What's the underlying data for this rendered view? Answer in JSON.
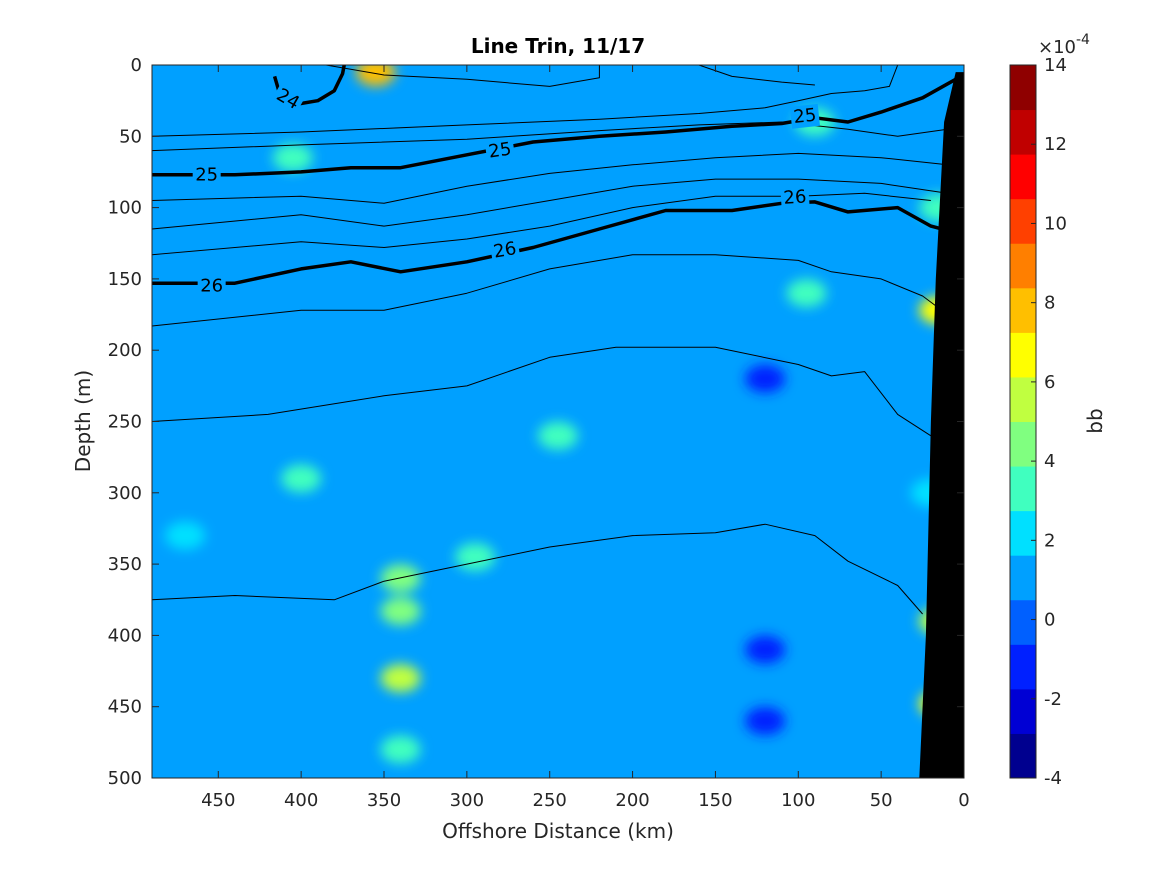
{
  "chart_data": {
    "type": "contour",
    "title": "Line Trin, 11/17",
    "xlabel": "Offshore Distance (km)",
    "ylabel": "Depth (m)",
    "xlim": [
      490,
      0
    ],
    "ylim": [
      0,
      500
    ],
    "x_reversed": true,
    "y_reversed": true,
    "xticks": [
      "450",
      "400",
      "350",
      "300",
      "250",
      "200",
      "150",
      "100",
      "50",
      "0"
    ],
    "xtick_values": [
      450,
      400,
      350,
      300,
      250,
      200,
      150,
      100,
      50,
      0
    ],
    "yticks": [
      "0",
      "50",
      "100",
      "150",
      "200",
      "250",
      "300",
      "350",
      "400",
      "450",
      "500"
    ],
    "ytick_values": [
      0,
      50,
      100,
      150,
      200,
      250,
      300,
      350,
      400,
      450,
      500
    ],
    "colorbar": {
      "label": "bb",
      "exponent_label": "×10",
      "exponent": "-4",
      "range": [
        -4,
        14
      ],
      "tick_values": [
        -4,
        -2,
        0,
        2,
        4,
        6,
        8,
        10,
        12,
        14
      ],
      "ticks": [
        "-4",
        "-2",
        "0",
        "2",
        "4",
        "6",
        "8",
        "10",
        "12",
        "14"
      ],
      "colors": [
        "#00008f",
        "#0000d4",
        "#0020ff",
        "#0060ff",
        "#00a0ff",
        "#00e0ff",
        "#40ffbf",
        "#80ff80",
        "#c0ff40",
        "#ffff00",
        "#ffbf00",
        "#ff7f00",
        "#ff4000",
        "#ff0000",
        "#c00000",
        "#8f0000"
      ]
    },
    "background_bb": 0.8,
    "bb_patches": [
      {
        "x": 355,
        "y": 5,
        "value": 8
      },
      {
        "x": 405,
        "y": 65,
        "value": 3
      },
      {
        "x": 90,
        "y": 40,
        "value": 3
      },
      {
        "x": 95,
        "y": 160,
        "value": 3
      },
      {
        "x": 15,
        "y": 100,
        "value": 3
      },
      {
        "x": 15,
        "y": 172,
        "value": 7
      },
      {
        "x": 20,
        "y": 300,
        "value": 2
      },
      {
        "x": 15,
        "y": 390,
        "value": 6
      },
      {
        "x": 15,
        "y": 448,
        "value": 7
      },
      {
        "x": 340,
        "y": 360,
        "value": 4
      },
      {
        "x": 340,
        "y": 383,
        "value": 4
      },
      {
        "x": 340,
        "y": 430,
        "value": 5
      },
      {
        "x": 340,
        "y": 480,
        "value": 3
      },
      {
        "x": 245,
        "y": 260,
        "value": 3
      },
      {
        "x": 295,
        "y": 345,
        "value": 3
      },
      {
        "x": 400,
        "y": 290,
        "value": 3
      },
      {
        "x": 470,
        "y": 330,
        "value": 2.5
      },
      {
        "x": 120,
        "y": 410,
        "value": -1
      },
      {
        "x": 120,
        "y": 460,
        "value": -1
      },
      {
        "x": 120,
        "y": 220,
        "value": -1
      }
    ],
    "isopycnals": [
      {
        "sigma": 25,
        "labeled": true,
        "points": [
          [
            490,
            77
          ],
          [
            440,
            77
          ],
          [
            400,
            75
          ],
          [
            370,
            72
          ],
          [
            340,
            72
          ],
          [
            300,
            63
          ],
          [
            260,
            54
          ],
          [
            220,
            50
          ],
          [
            180,
            47
          ],
          [
            140,
            43
          ],
          [
            110,
            41
          ],
          [
            90,
            37
          ],
          [
            70,
            40
          ],
          [
            50,
            33
          ],
          [
            25,
            23
          ],
          [
            5,
            10
          ]
        ]
      },
      {
        "sigma": 26,
        "labeled": true,
        "points": [
          [
            490,
            153
          ],
          [
            440,
            153
          ],
          [
            400,
            143
          ],
          [
            370,
            138
          ],
          [
            340,
            145
          ],
          [
            300,
            138
          ],
          [
            260,
            128
          ],
          [
            220,
            115
          ],
          [
            180,
            102
          ],
          [
            140,
            102
          ],
          [
            110,
            97
          ],
          [
            90,
            96
          ],
          [
            70,
            103
          ],
          [
            40,
            100
          ],
          [
            20,
            113
          ],
          [
            10,
            116
          ]
        ]
      },
      {
        "sigma": 24,
        "labeled": true,
        "points": [
          [
            416,
            8
          ],
          [
            413,
            20
          ],
          [
            405,
            28
          ],
          [
            390,
            25
          ],
          [
            380,
            18
          ],
          [
            375,
            6
          ],
          [
            374,
            0
          ]
        ]
      },
      {
        "sigma": null,
        "labeled": false,
        "points": [
          [
            490,
            50
          ],
          [
            400,
            47
          ],
          [
            300,
            42
          ],
          [
            220,
            38
          ],
          [
            160,
            34
          ],
          [
            120,
            30
          ],
          [
            100,
            25
          ],
          [
            80,
            20
          ],
          [
            60,
            18
          ],
          [
            45,
            15
          ],
          [
            40,
            0
          ]
        ]
      },
      {
        "sigma": null,
        "labeled": false,
        "points": [
          [
            490,
            60
          ],
          [
            400,
            56
          ],
          [
            300,
            52
          ],
          [
            220,
            46
          ],
          [
            160,
            42
          ],
          [
            110,
            40
          ],
          [
            70,
            45
          ],
          [
            40,
            50
          ],
          [
            10,
            45
          ]
        ]
      },
      {
        "sigma": null,
        "labeled": false,
        "points": [
          [
            490,
            95
          ],
          [
            400,
            92
          ],
          [
            350,
            97
          ],
          [
            300,
            85
          ],
          [
            250,
            76
          ],
          [
            200,
            70
          ],
          [
            150,
            65
          ],
          [
            100,
            62
          ],
          [
            50,
            65
          ],
          [
            10,
            70
          ]
        ]
      },
      {
        "sigma": null,
        "labeled": false,
        "points": [
          [
            490,
            115
          ],
          [
            400,
            105
          ],
          [
            350,
            113
          ],
          [
            300,
            105
          ],
          [
            250,
            95
          ],
          [
            200,
            85
          ],
          [
            150,
            80
          ],
          [
            100,
            80
          ],
          [
            50,
            83
          ],
          [
            10,
            90
          ]
        ]
      },
      {
        "sigma": null,
        "labeled": false,
        "points": [
          [
            490,
            133
          ],
          [
            400,
            124
          ],
          [
            350,
            128
          ],
          [
            300,
            122
          ],
          [
            250,
            113
          ],
          [
            200,
            100
          ],
          [
            150,
            92
          ],
          [
            100,
            92
          ],
          [
            60,
            90
          ],
          [
            20,
            95
          ]
        ]
      },
      {
        "sigma": null,
        "labeled": false,
        "points": [
          [
            490,
            183
          ],
          [
            400,
            172
          ],
          [
            350,
            172
          ],
          [
            300,
            160
          ],
          [
            250,
            143
          ],
          [
            200,
            133
          ],
          [
            150,
            133
          ],
          [
            100,
            137
          ],
          [
            80,
            145
          ],
          [
            50,
            150
          ],
          [
            25,
            162
          ],
          [
            10,
            175
          ]
        ]
      },
      {
        "sigma": null,
        "labeled": false,
        "points": [
          [
            490,
            250
          ],
          [
            420,
            245
          ],
          [
            350,
            232
          ],
          [
            300,
            225
          ],
          [
            250,
            205
          ],
          [
            210,
            198
          ],
          [
            150,
            198
          ],
          [
            100,
            210
          ],
          [
            80,
            218
          ],
          [
            60,
            215
          ],
          [
            40,
            245
          ],
          [
            20,
            260
          ]
        ]
      },
      {
        "sigma": null,
        "labeled": false,
        "points": [
          [
            490,
            375
          ],
          [
            440,
            372
          ],
          [
            380,
            375
          ],
          [
            350,
            362
          ],
          [
            300,
            350
          ],
          [
            250,
            338
          ],
          [
            200,
            330
          ],
          [
            150,
            328
          ],
          [
            120,
            322
          ],
          [
            90,
            330
          ],
          [
            70,
            348
          ],
          [
            40,
            365
          ],
          [
            25,
            385
          ]
        ]
      },
      {
        "sigma": null,
        "labeled": false,
        "points": [
          [
            385,
            0
          ],
          [
            350,
            7
          ],
          [
            300,
            10
          ],
          [
            250,
            15
          ],
          [
            220,
            9
          ],
          [
            220,
            0
          ]
        ]
      },
      {
        "sigma": null,
        "labeled": false,
        "points": [
          [
            160,
            0
          ],
          [
            140,
            8
          ],
          [
            110,
            12
          ],
          [
            90,
            14
          ]
        ]
      }
    ],
    "bathymetry": [
      [
        5,
        5
      ],
      [
        12,
        40
      ],
      [
        17,
        150
      ],
      [
        20,
        250
      ],
      [
        23,
        400
      ],
      [
        27,
        500
      ],
      [
        0,
        500
      ],
      [
        0,
        5
      ]
    ],
    "contour_labels": [
      {
        "text": "25",
        "x": 457,
        "y": 77,
        "angle": 0
      },
      {
        "text": "25",
        "x": 280,
        "y": 60,
        "angle": -8
      },
      {
        "text": "25",
        "x": 96,
        "y": 36,
        "angle": -6
      },
      {
        "text": "26",
        "x": 454,
        "y": 155,
        "angle": 0
      },
      {
        "text": "26",
        "x": 277,
        "y": 130,
        "angle": -10
      },
      {
        "text": "26",
        "x": 102,
        "y": 93,
        "angle": -4
      },
      {
        "text": "24",
        "x": 408,
        "y": 24,
        "angle": 30
      }
    ]
  }
}
